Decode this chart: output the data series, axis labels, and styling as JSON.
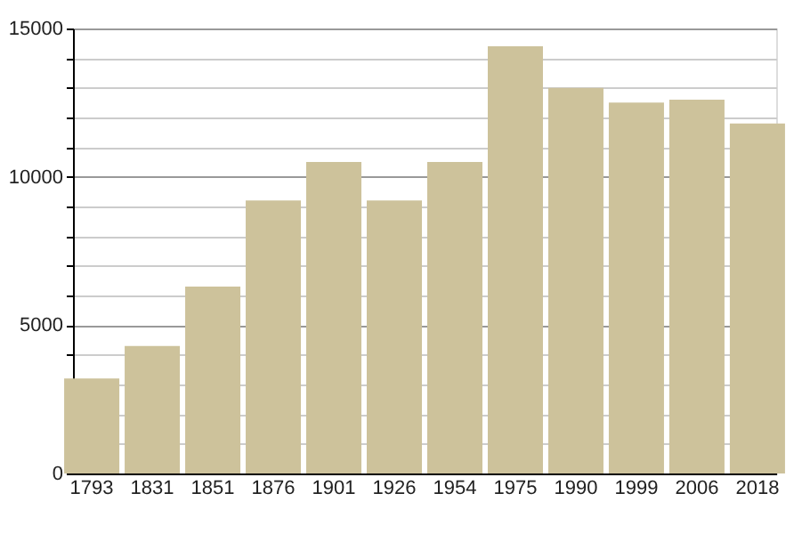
{
  "chart_data": {
    "type": "bar",
    "categories": [
      "1793",
      "1831",
      "1851",
      "1876",
      "1901",
      "1926",
      "1954",
      "1975",
      "1990",
      "1999",
      "2006",
      "2018"
    ],
    "values": [
      3200,
      4300,
      6300,
      9200,
      10500,
      9200,
      10500,
      14400,
      13000,
      12500,
      12600,
      11800
    ],
    "color": "#cdc29b",
    "ylim": [
      0,
      15000
    ],
    "yticks": [
      0,
      {
        "value": 1000,
        "label": null
      },
      {
        "value": 2000,
        "label": null
      },
      {
        "value": 3000,
        "label": null
      },
      {
        "value": 4000,
        "label": null
      },
      5000,
      {
        "value": 6000,
        "label": null
      },
      {
        "value": 7000,
        "label": null
      },
      {
        "value": 8000,
        "label": null
      },
      {
        "value": 9000,
        "label": null
      },
      10000,
      {
        "value": 11000,
        "label": null
      },
      {
        "value": 12000,
        "label": null
      },
      {
        "value": 13000,
        "label": null
      },
      {
        "value": 14000,
        "label": null
      },
      15000
    ],
    "grid": "y"
  }
}
